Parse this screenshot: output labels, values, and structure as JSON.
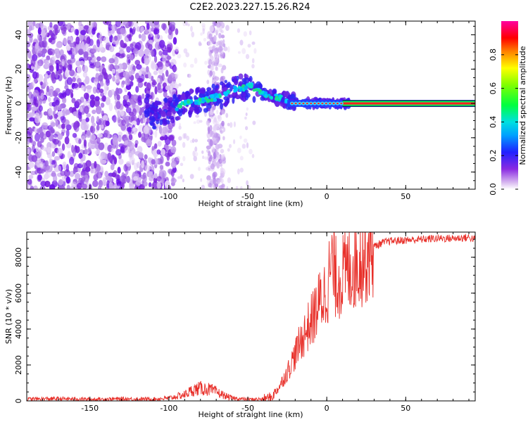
{
  "title": "C2E2.2023.227.15.26.R24",
  "colors": {
    "snr_line": "#e8302a",
    "frame": "#000000"
  },
  "chart_data": [
    {
      "type": "heatmap",
      "xlabel": "Height of straight line (km)",
      "ylabel": "Frequency (Hz)",
      "xlim": [
        -190,
        94
      ],
      "ylim": [
        -50,
        48
      ],
      "xticks": [
        -150,
        -100,
        -50,
        0,
        50
      ],
      "yticks": [
        -40,
        -20,
        0,
        20,
        40
      ],
      "colorbar": {
        "label": "Normalized spectral amplitude",
        "range": [
          0,
          1
        ],
        "ticks": [
          0.0,
          0.2,
          0.4,
          0.6,
          0.8
        ],
        "colormap": "rainbow (white-purple-blue-cyan-green-yellow-red-magenta)"
      },
      "ridge": [
        {
          "x": -112,
          "y": -8
        },
        {
          "x": -100,
          "y": -4
        },
        {
          "x": -90,
          "y": 0
        },
        {
          "x": -78,
          "y": 2
        },
        {
          "x": -68,
          "y": 4
        },
        {
          "x": -60,
          "y": 8
        },
        {
          "x": -48,
          "y": 10
        },
        {
          "x": -40,
          "y": 6
        },
        {
          "x": -30,
          "y": 3
        },
        {
          "x": -20,
          "y": 1
        },
        {
          "x": -10,
          "y": 0
        },
        {
          "x": 0,
          "y": 0
        },
        {
          "x": 94,
          "y": 0
        }
      ]
    },
    {
      "type": "line",
      "xlabel": "Height of straight line (km)",
      "ylabel": "SNR (10 * v/v)",
      "xlim": [
        -190,
        94
      ],
      "ylim": [
        0,
        9400
      ],
      "xticks": [
        -150,
        -100,
        -50,
        0,
        50
      ],
      "yticks": [
        0,
        2000,
        4000,
        6000,
        8000
      ],
      "series": [
        {
          "x": [
            -190,
            -170,
            -150,
            -130,
            -110,
            -100,
            -90,
            -85,
            -80,
            -75,
            -70,
            -65,
            -60,
            -50,
            -40,
            -35,
            -30,
            -25,
            -20,
            -15,
            -10,
            -5,
            0,
            3,
            6,
            10,
            15,
            20,
            25,
            30,
            35,
            40,
            50,
            60,
            70,
            80,
            90,
            94
          ],
          "values": [
            100,
            120,
            90,
            110,
            100,
            150,
            350,
            600,
            700,
            650,
            500,
            300,
            150,
            80,
            100,
            200,
            800,
            1600,
            2600,
            3600,
            4400,
            5400,
            6200,
            7600,
            6800,
            7000,
            7400,
            7800,
            8200,
            8600,
            8800,
            8900,
            8950,
            9000,
            9050,
            9050,
            9100,
            9000
          ]
        }
      ]
    }
  ]
}
